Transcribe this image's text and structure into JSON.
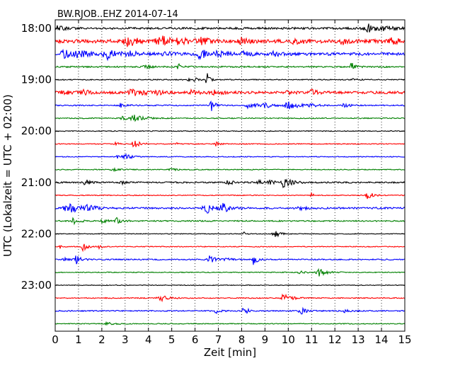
{
  "chart_data": {
    "type": "line",
    "title": "BW.RJOB..EHZ 2014-07-14",
    "xlabel": "Zeit  [min]",
    "ylabel": "UTC (Lokalzeit = UTC + 02:00)",
    "xlim": [
      0,
      15
    ],
    "x_ticks": [
      "0",
      "1",
      "2",
      "3",
      "4",
      "5",
      "6",
      "7",
      "8",
      "9",
      "10",
      "11",
      "12",
      "13",
      "14",
      "15"
    ],
    "y_ticks": [
      "18:00",
      "19:00",
      "20:00",
      "21:00",
      "22:00",
      "23:00"
    ],
    "grid": "vertical dotted at each minute",
    "colors": [
      "#000000",
      "#ff0000",
      "#0000ff",
      "#008000"
    ],
    "series": [
      {
        "start": "18:00",
        "color": "#000000",
        "noise": 1.4,
        "events": [
          [
            0.1,
            3,
            0.3
          ],
          [
            13.4,
            6,
            0.5
          ],
          [
            14.1,
            2,
            0.3
          ]
        ]
      },
      {
        "start": "18:15",
        "color": "#ff0000",
        "noise": 2.5,
        "events": [
          [
            3.1,
            7,
            0.4
          ],
          [
            4.5,
            8,
            0.4
          ],
          [
            5.4,
            5,
            0.4
          ],
          [
            6.3,
            4,
            0.3
          ],
          [
            8.0,
            4,
            0.3
          ],
          [
            10.3,
            5,
            0.3
          ],
          [
            12.3,
            4,
            0.3
          ],
          [
            14.4,
            4,
            0.4
          ]
        ]
      },
      {
        "start": "18:30",
        "color": "#0000ff",
        "noise": 2.0,
        "events": [
          [
            0.4,
            5,
            0.4
          ],
          [
            1.0,
            5,
            0.3
          ],
          [
            2.2,
            7,
            0.4
          ],
          [
            3.2,
            4,
            0.3
          ],
          [
            4.6,
            4,
            0.3
          ],
          [
            6.2,
            6,
            0.4
          ],
          [
            7.0,
            3,
            0.3
          ],
          [
            8.1,
            3,
            0.3
          ],
          [
            9.3,
            3,
            0.3
          ]
        ]
      },
      {
        "start": "18:45",
        "color": "#008000",
        "noise": 1.0,
        "events": [
          [
            3.9,
            2,
            0.3
          ],
          [
            5.3,
            6,
            0.15
          ],
          [
            12.7,
            7,
            0.15
          ]
        ]
      },
      {
        "start": "19:00",
        "color": "#000000",
        "noise": 0.7,
        "events": [
          [
            5.7,
            2,
            0.15
          ],
          [
            6.0,
            3,
            0.15
          ],
          [
            6.5,
            11,
            0.1
          ],
          [
            12.8,
            2,
            0.2
          ]
        ]
      },
      {
        "start": "19:15",
        "color": "#ff0000",
        "noise": 1.8,
        "events": [
          [
            0.3,
            3,
            0.3
          ],
          [
            1.2,
            3,
            0.3
          ],
          [
            3.3,
            4,
            0.6
          ],
          [
            4.2,
            3,
            0.3
          ],
          [
            5.8,
            3,
            0.3
          ],
          [
            6.8,
            3,
            0.3
          ],
          [
            10.0,
            3,
            0.2
          ],
          [
            11.0,
            4,
            0.2
          ]
        ]
      },
      {
        "start": "19:30",
        "color": "#0000ff",
        "noise": 0.8,
        "events": [
          [
            2.8,
            3,
            0.2
          ],
          [
            6.7,
            8,
            0.15
          ],
          [
            8.3,
            4,
            0.4
          ],
          [
            9.0,
            3,
            0.3
          ],
          [
            10.0,
            6,
            0.4
          ],
          [
            11.0,
            2,
            0.3
          ],
          [
            12.4,
            3,
            0.2
          ]
        ]
      },
      {
        "start": "19:45",
        "color": "#008000",
        "noise": 0.7,
        "events": [
          [
            2.9,
            3,
            0.2
          ],
          [
            3.4,
            4,
            0.4
          ]
        ]
      },
      {
        "start": "20:00",
        "color": "#000000",
        "noise": 0.6,
        "events": []
      },
      {
        "start": "20:15",
        "color": "#ff0000",
        "noise": 0.6,
        "events": [
          [
            2.6,
            3,
            0.15
          ],
          [
            3.4,
            6,
            0.25
          ],
          [
            5.2,
            2,
            0.1
          ],
          [
            6.9,
            3,
            0.15
          ]
        ]
      },
      {
        "start": "20:30",
        "color": "#0000ff",
        "noise": 0.6,
        "events": [
          [
            2.7,
            4,
            0.2
          ],
          [
            3.0,
            5,
            0.2
          ]
        ]
      },
      {
        "start": "20:45",
        "color": "#008000",
        "noise": 0.6,
        "events": [
          [
            2.5,
            1.5,
            0.3
          ],
          [
            5.0,
            1.5,
            0.3
          ]
        ]
      },
      {
        "start": "21:00",
        "color": "#000000",
        "noise": 1.0,
        "events": [
          [
            1.3,
            8,
            0.15
          ],
          [
            2.8,
            3,
            0.15
          ],
          [
            7.4,
            4,
            0.2
          ],
          [
            8.7,
            3,
            0.2
          ],
          [
            9.2,
            3,
            0.2
          ],
          [
            9.8,
            7,
            0.3
          ]
        ]
      },
      {
        "start": "21:15",
        "color": "#ff0000",
        "noise": 0.6,
        "events": [
          [
            11.0,
            3,
            0.1
          ],
          [
            13.4,
            6,
            0.2
          ]
        ]
      },
      {
        "start": "21:30",
        "color": "#0000ff",
        "noise": 1.2,
        "events": [
          [
            0.6,
            6,
            0.6
          ],
          [
            1.4,
            3,
            0.3
          ],
          [
            6.5,
            7,
            0.4
          ],
          [
            7.2,
            6,
            0.3
          ],
          [
            10.5,
            2,
            0.3
          ]
        ]
      },
      {
        "start": "21:45",
        "color": "#008000",
        "noise": 0.9,
        "events": [
          [
            0.8,
            5,
            0.2
          ],
          [
            2.0,
            3,
            0.2
          ],
          [
            2.6,
            5,
            0.2
          ]
        ]
      },
      {
        "start": "22:00",
        "color": "#000000",
        "noise": 0.5,
        "events": [
          [
            8.1,
            4,
            0.1
          ],
          [
            9.4,
            6,
            0.2
          ]
        ]
      },
      {
        "start": "22:15",
        "color": "#ff0000",
        "noise": 0.6,
        "events": [
          [
            0.2,
            3,
            0.1
          ],
          [
            1.2,
            7,
            0.15
          ],
          [
            1.9,
            4,
            0.1
          ]
        ]
      },
      {
        "start": "22:30",
        "color": "#0000ff",
        "noise": 0.8,
        "events": [
          [
            0.4,
            3,
            0.2
          ],
          [
            0.9,
            6,
            0.2
          ],
          [
            6.6,
            7,
            0.2
          ],
          [
            7.3,
            3,
            0.2
          ],
          [
            8.5,
            8,
            0.15
          ]
        ]
      },
      {
        "start": "22:45",
        "color": "#008000",
        "noise": 0.6,
        "events": [
          [
            10.5,
            2,
            0.2
          ],
          [
            11.3,
            6,
            0.3
          ]
        ]
      },
      {
        "start": "23:00",
        "color": "#000000",
        "noise": 0.5,
        "events": []
      },
      {
        "start": "23:15",
        "color": "#ff0000",
        "noise": 0.7,
        "events": [
          [
            4.5,
            5,
            0.3
          ],
          [
            9.8,
            6,
            0.3
          ]
        ]
      },
      {
        "start": "23:30",
        "color": "#0000ff",
        "noise": 0.8,
        "events": [
          [
            6.9,
            4,
            0.15
          ],
          [
            8.1,
            7,
            0.15
          ],
          [
            10.5,
            6,
            0.2
          ],
          [
            12.4,
            2,
            0.2
          ]
        ]
      },
      {
        "start": "23:45",
        "color": "#008000",
        "noise": 0.6,
        "events": [
          [
            2.2,
            2,
            0.3
          ]
        ]
      }
    ]
  }
}
